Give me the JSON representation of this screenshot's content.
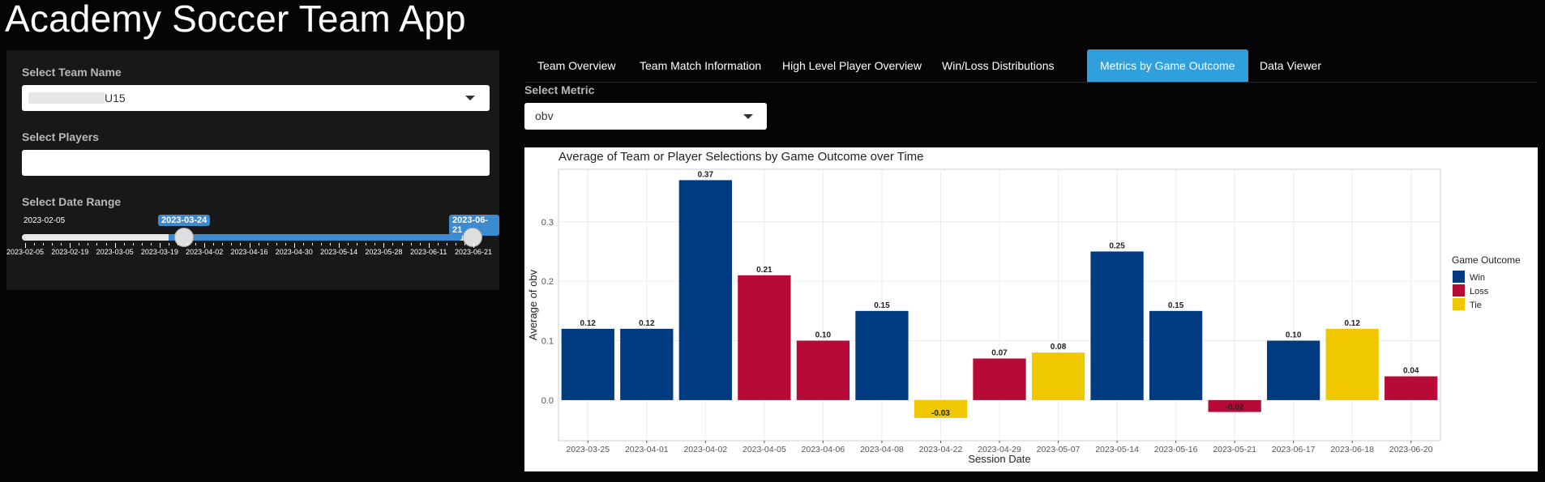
{
  "app": {
    "title": "Academy Soccer Team App"
  },
  "sidebar": {
    "team_label": "Select Team Name",
    "team_value": "U15",
    "players_label": "Select Players",
    "players_value": "",
    "date_label": "Select Date Range",
    "date_min": "2023-02-05",
    "date_from": "2023-03-24",
    "date_to": "2023-06-21",
    "range_fraction": [
      0.3557,
      1.0
    ],
    "tick_labels": [
      "2023-02-05",
      "2023-02-19",
      "2023-03-05",
      "2023-03-19",
      "2023-04-02",
      "2023-04-16",
      "2023-04-30",
      "2023-05-14",
      "2023-05-28",
      "2023-06-11",
      "2023-06-21"
    ]
  },
  "tabs": [
    {
      "label": "Team Overview",
      "active": false
    },
    {
      "label": "Team Match Information",
      "active": false
    },
    {
      "label": "High Level Player Overview",
      "active": false
    },
    {
      "label": "Win/Loss Distributions",
      "active": false
    },
    {
      "label": "Metrics by Game Outcome",
      "active": true
    },
    {
      "label": "Data Viewer",
      "active": false
    }
  ],
  "metric": {
    "label": "Select Metric",
    "value": "obv"
  },
  "colors": {
    "Win": "#003a80",
    "Loss": "#b80a36",
    "Tie": "#f0c800",
    "accent": "#2fa0db"
  },
  "chart_data": {
    "type": "bar",
    "title": "Average of Team or Player Selections by Game Outcome over Time",
    "xlabel": "Session Date",
    "ylabel": "Average of obv",
    "ylim": [
      -0.05,
      0.37
    ],
    "yticks": [
      0.0,
      0.1,
      0.2,
      0.3
    ],
    "ytick_labels": [
      "0.0",
      "0.1",
      "0.2",
      "0.3"
    ],
    "grid": true,
    "legend_title": "Game Outcome",
    "legend_position": "right",
    "legend": [
      "Win",
      "Loss",
      "Tie"
    ],
    "categories": [
      "2023-03-25",
      "2023-04-01",
      "2023-04-02",
      "2023-04-05",
      "2023-04-06",
      "2023-04-08",
      "2023-04-22",
      "2023-04-29",
      "2023-05-07",
      "2023-05-14",
      "2023-05-16",
      "2023-05-21",
      "2023-06-17",
      "2023-06-18",
      "2023-06-20"
    ],
    "values": [
      0.12,
      0.12,
      0.37,
      0.21,
      0.1,
      0.15,
      -0.03,
      0.07,
      0.08,
      0.25,
      0.15,
      -0.02,
      0.1,
      0.12,
      0.04
    ],
    "value_labels": [
      "0.12",
      "0.12",
      "0.37",
      "0.21",
      "0.10",
      "0.15",
      "-0.03",
      "0.07",
      "0.08",
      "0.25",
      "0.15",
      "-0.02",
      "0.10",
      "0.12",
      "0.04"
    ],
    "outcomes": [
      "Win",
      "Win",
      "Win",
      "Loss",
      "Loss",
      "Win",
      "Tie",
      "Loss",
      "Tie",
      "Win",
      "Win",
      "Loss",
      "Win",
      "Tie",
      "Loss"
    ]
  }
}
